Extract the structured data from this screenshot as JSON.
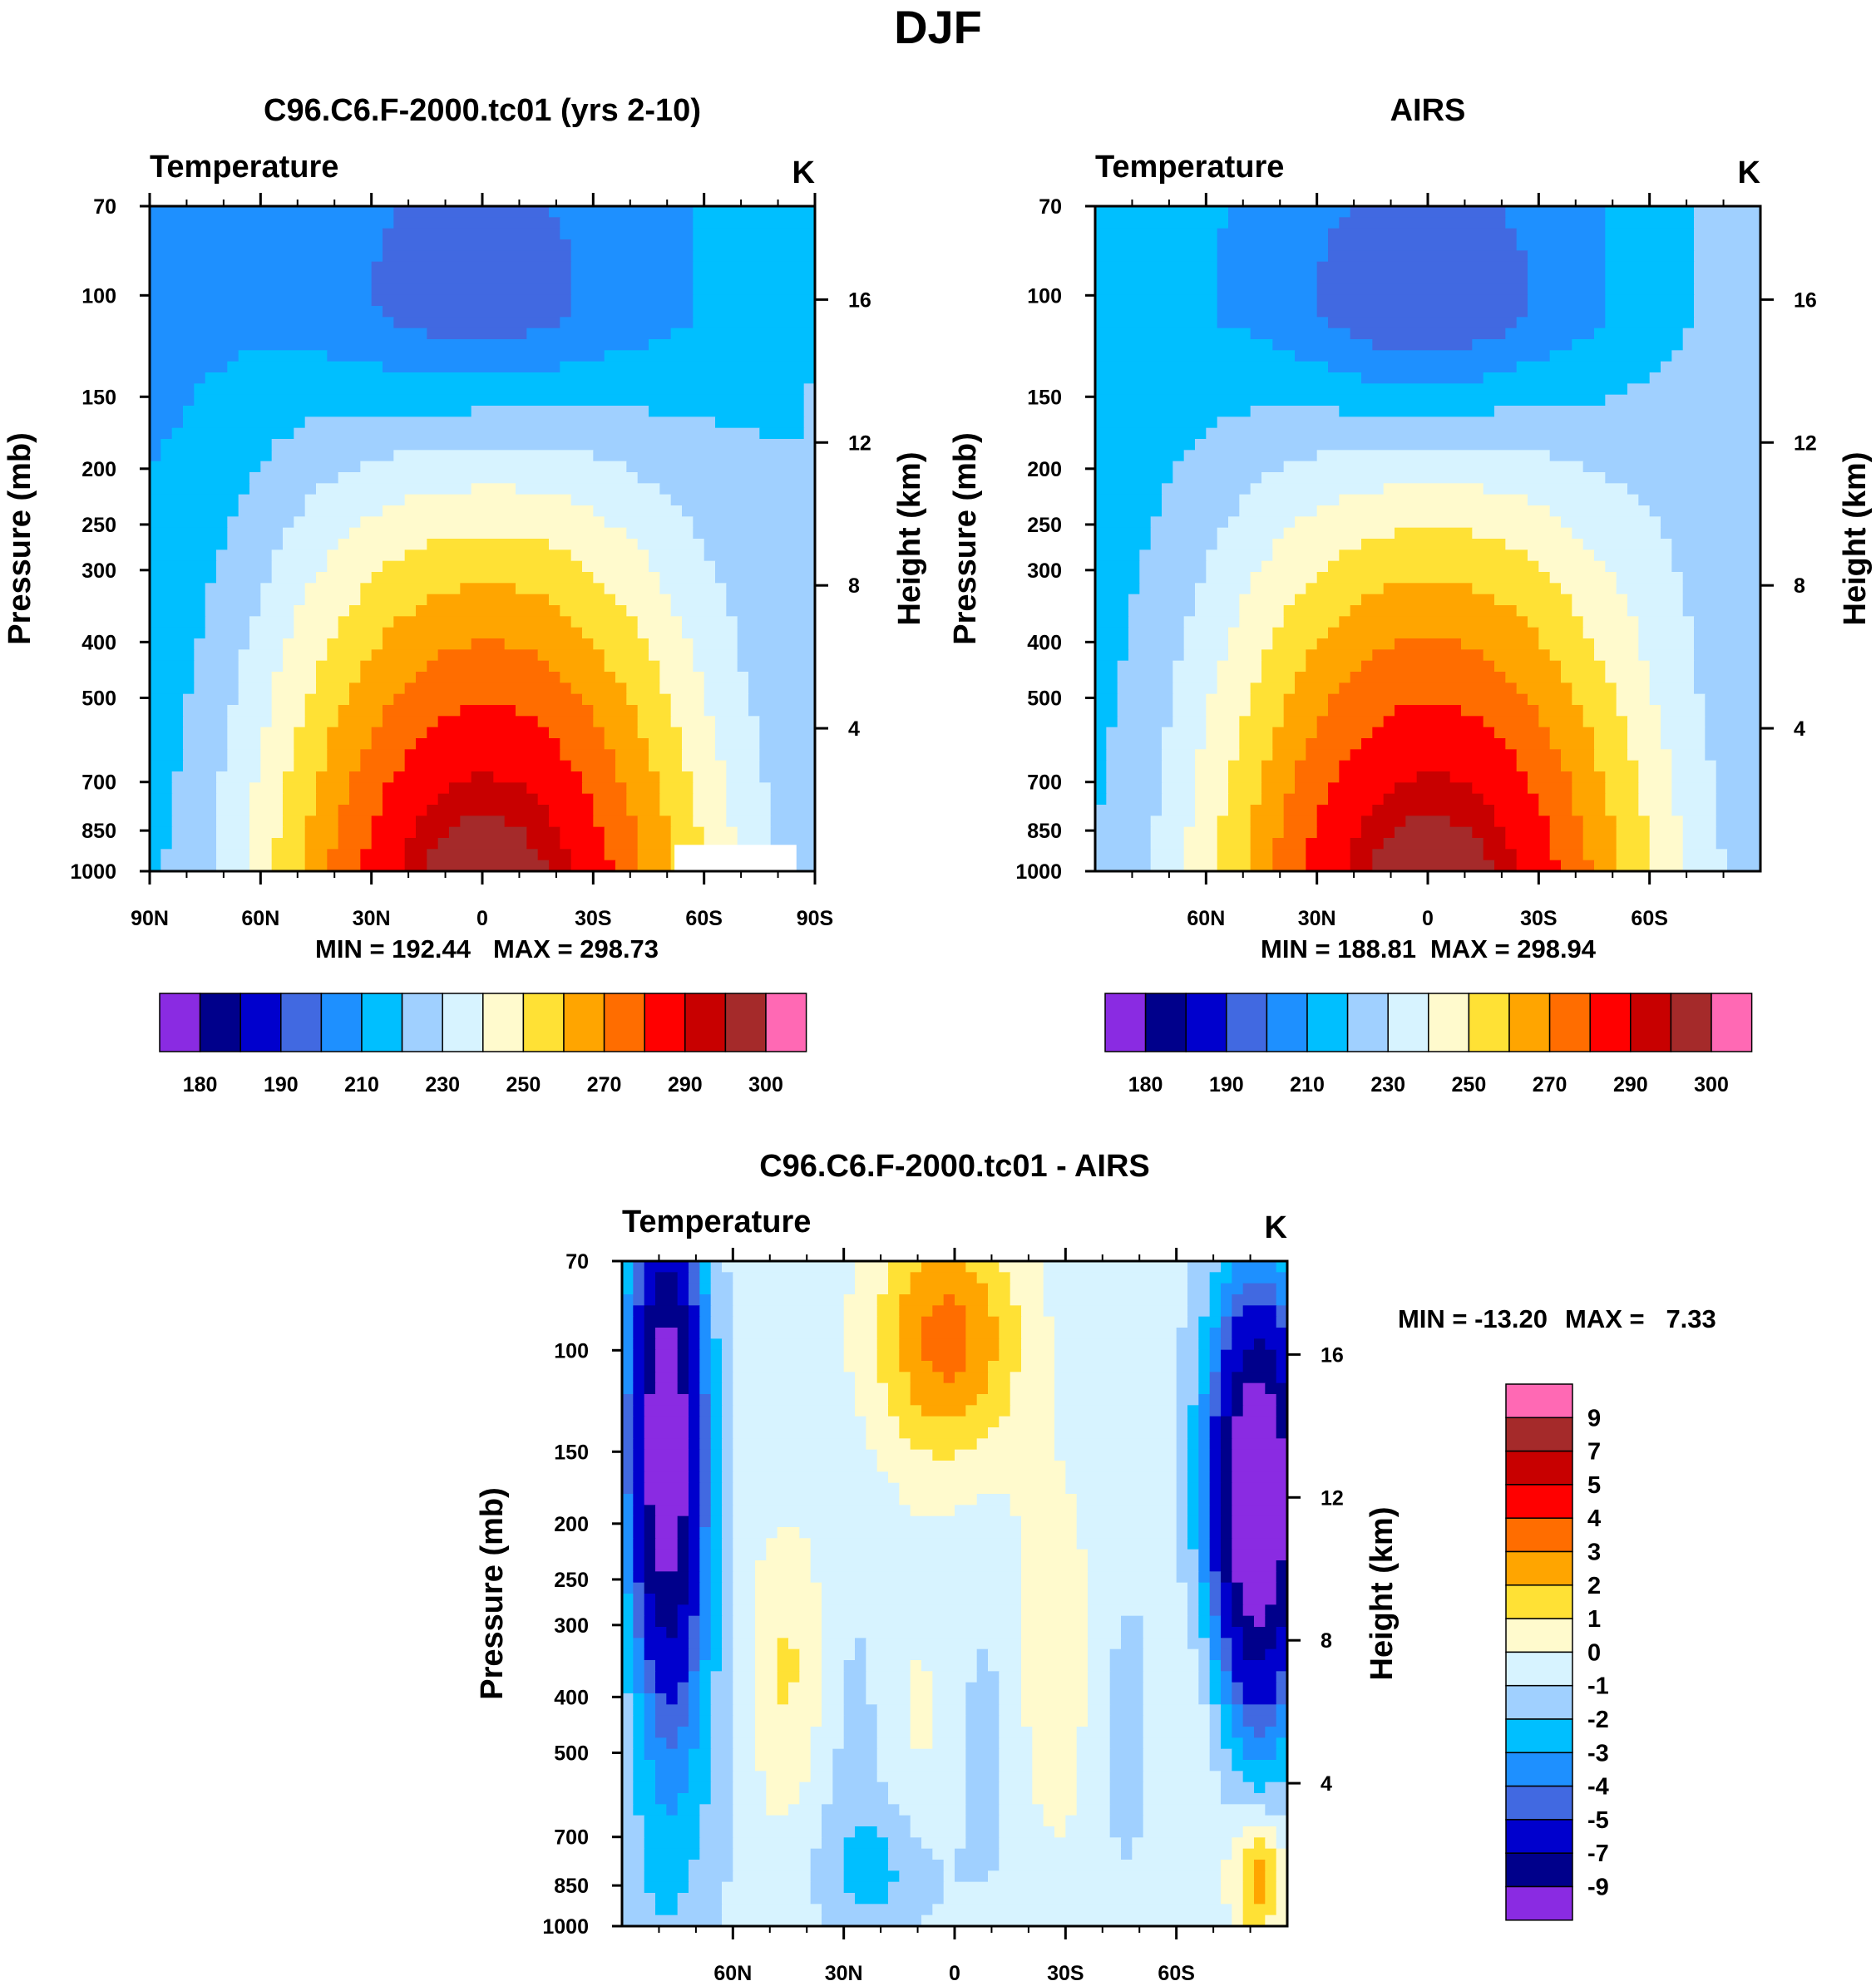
{
  "figure_title": "DJF",
  "colors": {
    "abs_palette": [
      "#8a2be2",
      "#00008b",
      "#0000cd",
      "#4169e1",
      "#1e90ff",
      "#00bfff",
      "#a0d0ff",
      "#d7f3ff",
      "#fffacd",
      "#ffe135",
      "#ffa500",
      "#ff6d00",
      "#ff0000",
      "#c80000",
      "#a52a2a",
      "#ff69b4"
    ],
    "diff_palette": [
      "#8a2be2",
      "#00008b",
      "#0000cd",
      "#4169e1",
      "#1e90ff",
      "#00bfff",
      "#a0d0ff",
      "#d7f3ff",
      "#fffacd",
      "#ffe135",
      "#ffa500",
      "#ff6d00",
      "#ff0000",
      "#c80000",
      "#a52a2a",
      "#ff69b4"
    ]
  },
  "chart_data": [
    {
      "type": "heatmap",
      "title": "C96.C6.F-2000.tc01 (yrs 2-10)",
      "left_label": "Temperature",
      "unit_label": "K",
      "ylabel": "Pressure (mb)",
      "ylabel_right": "Height (km)",
      "xlim": [
        90,
        -90
      ],
      "x_ticks": [
        90,
        60,
        30,
        0,
        -30,
        -60,
        -90
      ],
      "x_tick_labels": [
        "90N",
        "60N",
        "30N",
        "0",
        "30S",
        "60S",
        "90S"
      ],
      "ylim": [
        1000,
        70
      ],
      "y_ticks": [
        1000,
        850,
        700,
        500,
        400,
        300,
        250,
        200,
        150,
        100,
        70
      ],
      "y_tick_labels": [
        "1000",
        "850",
        "700",
        "500",
        "400",
        "300",
        "250",
        "200",
        "150",
        "100",
        "70"
      ],
      "height_ticks": [
        4,
        8,
        12,
        16
      ],
      "height_tick_labels": [
        "4",
        "8",
        "12",
        "16"
      ],
      "min_label": "MIN = 192.44",
      "max_label": "MAX = 298.73",
      "min": 192.44,
      "max": 298.73,
      "levels": [
        180,
        185,
        190,
        200,
        210,
        220,
        230,
        240,
        250,
        260,
        270,
        280,
        290,
        295,
        300
      ],
      "colorbar_labels": [
        "180",
        "190",
        "210",
        "230",
        "250",
        "270",
        "290",
        "300"
      ],
      "colorbar_orientation": "horizontal",
      "missing_region": {
        "lat": [
          -52,
          -85
        ],
        "p": [
          1000,
          900
        ]
      }
    },
    {
      "type": "heatmap",
      "title": "AIRS",
      "left_label": "Temperature",
      "unit_label": "K",
      "ylabel": "Pressure (mb)",
      "ylabel_right": "Height (km)",
      "xlim": [
        90,
        -90
      ],
      "x_ticks": [
        60,
        30,
        0,
        -30,
        -60
      ],
      "x_tick_labels": [
        "60N",
        "30N",
        "0",
        "30S",
        "60S"
      ],
      "ylim": [
        1000,
        70
      ],
      "y_ticks": [
        1000,
        850,
        700,
        500,
        400,
        300,
        250,
        200,
        150,
        100,
        70
      ],
      "y_tick_labels": [
        "1000",
        "850",
        "700",
        "500",
        "400",
        "300",
        "250",
        "200",
        "150",
        "100",
        "70"
      ],
      "height_ticks": [
        4,
        8,
        12,
        16
      ],
      "height_tick_labels": [
        "4",
        "8",
        "12",
        "16"
      ],
      "min_label": "MIN = 188.81",
      "max_label": "MAX = 298.94",
      "min": 188.81,
      "max": 298.94,
      "levels": [
        180,
        185,
        190,
        200,
        210,
        220,
        230,
        240,
        250,
        260,
        270,
        280,
        290,
        295,
        300
      ],
      "colorbar_labels": [
        "180",
        "190",
        "210",
        "230",
        "250",
        "270",
        "290",
        "300"
      ],
      "colorbar_orientation": "horizontal"
    },
    {
      "type": "heatmap",
      "title": "C96.C6.F-2000.tc01 - AIRS",
      "left_label": "Temperature",
      "unit_label": "K",
      "ylabel": "Pressure (mb)",
      "ylabel_right": "Height (km)",
      "xlim": [
        90,
        -90
      ],
      "x_ticks": [
        60,
        30,
        0,
        -30,
        -60
      ],
      "x_tick_labels": [
        "60N",
        "30N",
        "0",
        "30S",
        "60S"
      ],
      "ylim": [
        1000,
        70
      ],
      "y_ticks": [
        1000,
        850,
        700,
        500,
        400,
        300,
        250,
        200,
        150,
        100,
        70
      ],
      "y_tick_labels": [
        "1000",
        "850",
        "700",
        "500",
        "400",
        "300",
        "250",
        "200",
        "150",
        "100",
        "70"
      ],
      "height_ticks": [
        4,
        8,
        12,
        16
      ],
      "height_tick_labels": [
        "4",
        "8",
        "12",
        "16"
      ],
      "min_label": "MIN = -13.20",
      "max_label": "MAX =   7.33",
      "min": -13.2,
      "max": 7.33,
      "levels": [
        -9,
        -7,
        -5,
        -4,
        -3,
        -2,
        -1,
        0,
        1,
        2,
        3,
        4,
        5,
        7,
        9
      ],
      "colorbar_labels": [
        "9",
        "7",
        "5",
        "4",
        "3",
        "2",
        "1",
        "0",
        "-1",
        "-2",
        "-3",
        "-4",
        "-5",
        "-7",
        "-9"
      ],
      "colorbar_orientation": "vertical"
    }
  ]
}
